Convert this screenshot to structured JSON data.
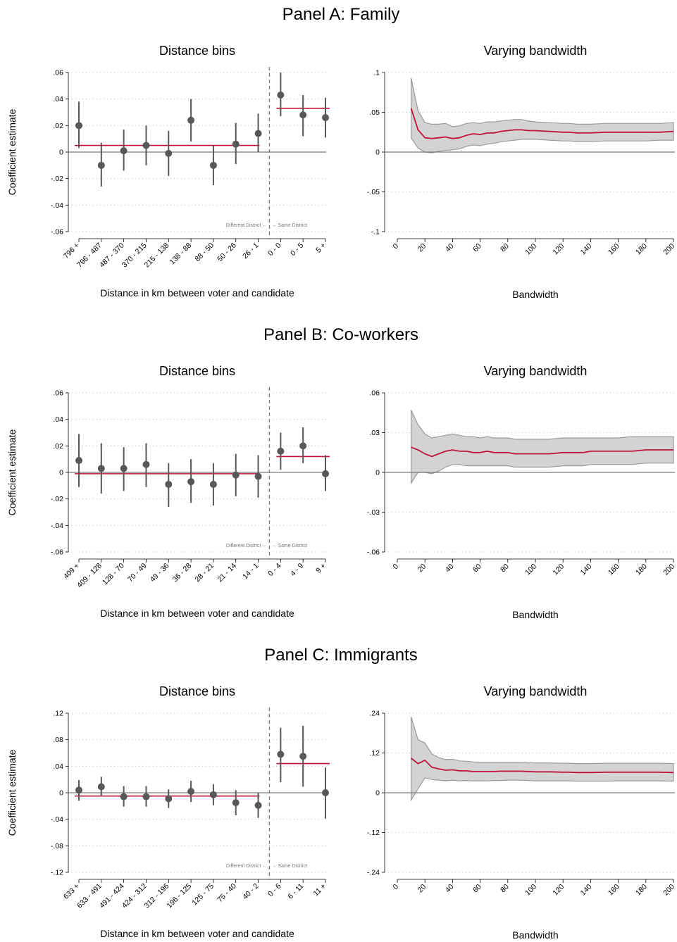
{
  "colors": {
    "ci_band": "#d3d3d3",
    "ci_band_edge": "#9a9a9a",
    "estimate_line": "#c0143c",
    "point": "#585858",
    "zero_line": "#7a7a7a",
    "grid": "#a8a8a8",
    "cutoff": "#7a7a7a"
  },
  "chart_data": [
    {
      "panel": "A",
      "title": "Panel A: Family",
      "bins": {
        "type": "scatter",
        "title": "Distance bins",
        "xlabel": "Distance in km between voter and candidate",
        "ylabel": "Coefficient estimate",
        "ylim": [
          -0.06,
          0.06
        ],
        "yticks": [
          0.06,
          0.04,
          0.02,
          0,
          -0.02,
          -0.04,
          -0.06
        ],
        "ytick_labels": [
          ".06",
          ".04",
          ".02",
          "0",
          "-.02",
          "-.04",
          "-.06"
        ],
        "grid": true,
        "categories": [
          "796 +",
          "796 - 487",
          "487 - 370",
          "370 - 215",
          "215 - 138",
          "138 - 88",
          "88 - 50",
          "50 - 26",
          "26 - 1",
          "0 - 0",
          "0 - 5",
          "5 +"
        ],
        "values": [
          0.02,
          -0.01,
          0.001,
          0.005,
          -0.001,
          0.024,
          -0.01,
          0.006,
          0.014,
          0.043,
          0.028,
          0.026
        ],
        "ci_low": [
          0.003,
          -0.026,
          -0.014,
          -0.01,
          -0.018,
          0.008,
          -0.025,
          -0.009,
          0.0,
          0.027,
          0.012,
          0.011
        ],
        "ci_high": [
          0.038,
          0.007,
          0.017,
          0.02,
          0.016,
          0.04,
          0.005,
          0.022,
          0.029,
          0.06,
          0.043,
          0.041
        ],
        "cutoff_after_index": 8,
        "mean_left": 0.005,
        "mean_right": 0.033,
        "annotation_left": "Different District ←",
        "annotation_right": "→ Same District"
      },
      "bandwidth": {
        "type": "line",
        "title": "Varying bandwidth",
        "xlabel": "Bandwidth",
        "xlim": [
          0,
          200
        ],
        "xticks": [
          0,
          20,
          40,
          60,
          80,
          100,
          120,
          140,
          160,
          180,
          200
        ],
        "ylim": [
          -0.1,
          0.1
        ],
        "yticks": [
          0.1,
          0.05,
          0,
          -0.05,
          -0.1
        ],
        "ytick_labels": [
          ".1",
          ".05",
          "0",
          "-.05",
          "-.1"
        ],
        "grid": true,
        "x": [
          10,
          15,
          20,
          25,
          30,
          35,
          40,
          45,
          50,
          55,
          60,
          65,
          70,
          75,
          80,
          85,
          90,
          95,
          100,
          110,
          120,
          125,
          130,
          135,
          140,
          150,
          160,
          170,
          180,
          190,
          200
        ],
        "estimate": [
          0.055,
          0.028,
          0.018,
          0.017,
          0.018,
          0.019,
          0.017,
          0.018,
          0.021,
          0.023,
          0.022,
          0.024,
          0.024,
          0.026,
          0.027,
          0.028,
          0.028,
          0.027,
          0.027,
          0.026,
          0.025,
          0.025,
          0.024,
          0.024,
          0.024,
          0.025,
          0.025,
          0.025,
          0.025,
          0.025,
          0.026
        ],
        "ci_low": [
          0.018,
          0.005,
          0.0,
          -0.001,
          0.001,
          0.002,
          0.003,
          0.004,
          0.007,
          0.009,
          0.008,
          0.01,
          0.011,
          0.013,
          0.014,
          0.015,
          0.016,
          0.016,
          0.016,
          0.015,
          0.014,
          0.014,
          0.013,
          0.013,
          0.013,
          0.014,
          0.014,
          0.014,
          0.014,
          0.015,
          0.015
        ],
        "ci_high": [
          0.093,
          0.052,
          0.037,
          0.035,
          0.035,
          0.036,
          0.032,
          0.033,
          0.036,
          0.037,
          0.036,
          0.038,
          0.038,
          0.039,
          0.04,
          0.041,
          0.041,
          0.039,
          0.038,
          0.037,
          0.036,
          0.036,
          0.035,
          0.035,
          0.035,
          0.036,
          0.036,
          0.036,
          0.036,
          0.036,
          0.037
        ]
      }
    },
    {
      "panel": "B",
      "title": "Panel B: Co-workers",
      "bins": {
        "type": "scatter",
        "title": "Distance bins",
        "xlabel": "Distance in km between voter and candidate",
        "ylabel": "Coefficient estimate",
        "ylim": [
          -0.06,
          0.06
        ],
        "yticks": [
          0.06,
          0.04,
          0.02,
          0,
          -0.02,
          -0.04,
          -0.06
        ],
        "ytick_labels": [
          ".06",
          ".04",
          ".02",
          "0",
          "-.02",
          "-.04",
          "-.06"
        ],
        "grid": true,
        "categories": [
          "409 +",
          "409 - 128",
          "128 - 70",
          "70 - 49",
          "49 - 36",
          "36 - 28",
          "28 - 21",
          "21 - 14",
          "14 - 1",
          "0 - 4",
          "4 - 9",
          "9 +"
        ],
        "values": [
          0.009,
          0.003,
          0.003,
          0.006,
          -0.009,
          -0.007,
          -0.009,
          -0.002,
          -0.003,
          0.016,
          0.02,
          -0.001
        ],
        "ci_low": [
          -0.011,
          -0.016,
          -0.014,
          -0.011,
          -0.026,
          -0.023,
          -0.025,
          -0.018,
          -0.019,
          0.002,
          0.007,
          -0.014
        ],
        "ci_high": [
          0.029,
          0.022,
          0.019,
          0.022,
          0.007,
          0.01,
          0.007,
          0.014,
          0.013,
          0.03,
          0.034,
          0.013
        ],
        "cutoff_after_index": 8,
        "mean_left": -0.001,
        "mean_right": 0.012,
        "annotation_left": "Different District ←",
        "annotation_right": "→ Same District"
      },
      "bandwidth": {
        "type": "line",
        "title": "Varying bandwidth",
        "xlabel": "Bandwidth",
        "xlim": [
          0,
          200
        ],
        "xticks": [
          0,
          20,
          40,
          60,
          80,
          100,
          120,
          140,
          160,
          180,
          200
        ],
        "ylim": [
          -0.06,
          0.06
        ],
        "yticks": [
          0.06,
          0.03,
          0,
          -0.03,
          -0.06
        ],
        "ytick_labels": [
          ".06",
          ".03",
          "0",
          "-.03",
          "-.06"
        ],
        "grid": true,
        "x": [
          10,
          15,
          20,
          25,
          30,
          35,
          40,
          45,
          50,
          55,
          60,
          65,
          70,
          75,
          80,
          85,
          90,
          95,
          100,
          110,
          120,
          125,
          130,
          135,
          140,
          150,
          160,
          170,
          180,
          190,
          200
        ],
        "estimate": [
          0.019,
          0.017,
          0.014,
          0.012,
          0.014,
          0.016,
          0.017,
          0.016,
          0.016,
          0.015,
          0.015,
          0.016,
          0.015,
          0.015,
          0.015,
          0.014,
          0.014,
          0.014,
          0.014,
          0.014,
          0.015,
          0.015,
          0.015,
          0.015,
          0.016,
          0.016,
          0.016,
          0.016,
          0.017,
          0.017,
          0.017
        ],
        "ci_low": [
          -0.008,
          0.0,
          0.0,
          -0.001,
          0.001,
          0.004,
          0.006,
          0.006,
          0.005,
          0.005,
          0.005,
          0.005,
          0.005,
          0.005,
          0.005,
          0.004,
          0.004,
          0.004,
          0.004,
          0.004,
          0.005,
          0.005,
          0.005,
          0.005,
          0.006,
          0.006,
          0.006,
          0.006,
          0.007,
          0.007,
          0.007
        ],
        "ci_high": [
          0.047,
          0.036,
          0.029,
          0.026,
          0.027,
          0.028,
          0.029,
          0.028,
          0.027,
          0.027,
          0.026,
          0.027,
          0.026,
          0.026,
          0.026,
          0.025,
          0.025,
          0.025,
          0.025,
          0.025,
          0.026,
          0.026,
          0.026,
          0.026,
          0.026,
          0.026,
          0.026,
          0.027,
          0.027,
          0.027,
          0.027
        ]
      }
    },
    {
      "panel": "C",
      "title": "Panel C: Immigrants",
      "bins": {
        "type": "scatter",
        "title": "Distance bins",
        "xlabel": "Distance in km between voter and candidate",
        "ylabel": "Coefficient estimate",
        "ylim": [
          -0.12,
          0.12
        ],
        "yticks": [
          0.12,
          0.08,
          0.04,
          0,
          -0.04,
          -0.08,
          -0.12
        ],
        "ytick_labels": [
          ".12",
          ".08",
          ".04",
          "0",
          "-.04",
          "-.08",
          "-.12"
        ],
        "grid": true,
        "categories": [
          "633 +",
          "633 - 491",
          "491 - 424",
          "424 - 312",
          "312 - 196",
          "196 - 125",
          "125 - 75",
          "75 - 40",
          "40 - 2",
          "0 - 6",
          "6 - 11",
          "11 +"
        ],
        "values": [
          0.004,
          0.009,
          -0.006,
          -0.006,
          -0.009,
          0.002,
          -0.003,
          -0.015,
          -0.019,
          0.058,
          0.055,
          0.0
        ],
        "ci_low": [
          -0.012,
          -0.005,
          -0.021,
          -0.021,
          -0.023,
          -0.014,
          -0.019,
          -0.034,
          -0.038,
          0.016,
          0.009,
          -0.039
        ],
        "ci_high": [
          0.019,
          0.024,
          0.01,
          0.01,
          0.005,
          0.018,
          0.013,
          0.004,
          0.0,
          0.098,
          0.101,
          0.038
        ],
        "cutoff_after_index": 8,
        "mean_left": -0.005,
        "mean_right": 0.044,
        "annotation_left": "Different District ←",
        "annotation_right": "→ Same District"
      },
      "bandwidth": {
        "type": "line",
        "title": "Varying bandwidth",
        "xlabel": "Bandwidth",
        "xlim": [
          0,
          200
        ],
        "xticks": [
          0,
          20,
          40,
          60,
          80,
          100,
          120,
          140,
          160,
          180,
          200
        ],
        "ylim": [
          -0.24,
          0.24
        ],
        "yticks": [
          0.24,
          0.12,
          0,
          -0.12,
          -0.24
        ],
        "ytick_labels": [
          ".24",
          ".12",
          "0",
          "-.12",
          "-.24"
        ],
        "grid": true,
        "x": [
          10,
          15,
          20,
          25,
          30,
          35,
          40,
          45,
          50,
          55,
          60,
          65,
          70,
          75,
          80,
          85,
          90,
          95,
          100,
          110,
          120,
          125,
          130,
          135,
          140,
          150,
          160,
          170,
          180,
          190,
          200
        ],
        "estimate": [
          0.104,
          0.088,
          0.098,
          0.077,
          0.072,
          0.068,
          0.069,
          0.066,
          0.066,
          0.064,
          0.064,
          0.064,
          0.064,
          0.065,
          0.065,
          0.065,
          0.065,
          0.064,
          0.063,
          0.063,
          0.062,
          0.062,
          0.061,
          0.061,
          0.061,
          0.062,
          0.062,
          0.062,
          0.062,
          0.062,
          0.061
        ],
        "ci_low": [
          -0.022,
          0.012,
          0.045,
          0.04,
          0.038,
          0.036,
          0.038,
          0.036,
          0.037,
          0.036,
          0.036,
          0.036,
          0.037,
          0.037,
          0.038,
          0.038,
          0.038,
          0.037,
          0.036,
          0.036,
          0.036,
          0.036,
          0.035,
          0.035,
          0.035,
          0.035,
          0.036,
          0.036,
          0.036,
          0.036,
          0.035
        ],
        "ci_high": [
          0.229,
          0.16,
          0.15,
          0.117,
          0.106,
          0.1,
          0.101,
          0.096,
          0.095,
          0.093,
          0.092,
          0.092,
          0.092,
          0.092,
          0.092,
          0.092,
          0.092,
          0.091,
          0.09,
          0.09,
          0.089,
          0.089,
          0.088,
          0.088,
          0.088,
          0.089,
          0.089,
          0.089,
          0.089,
          0.089,
          0.088
        ]
      }
    }
  ]
}
